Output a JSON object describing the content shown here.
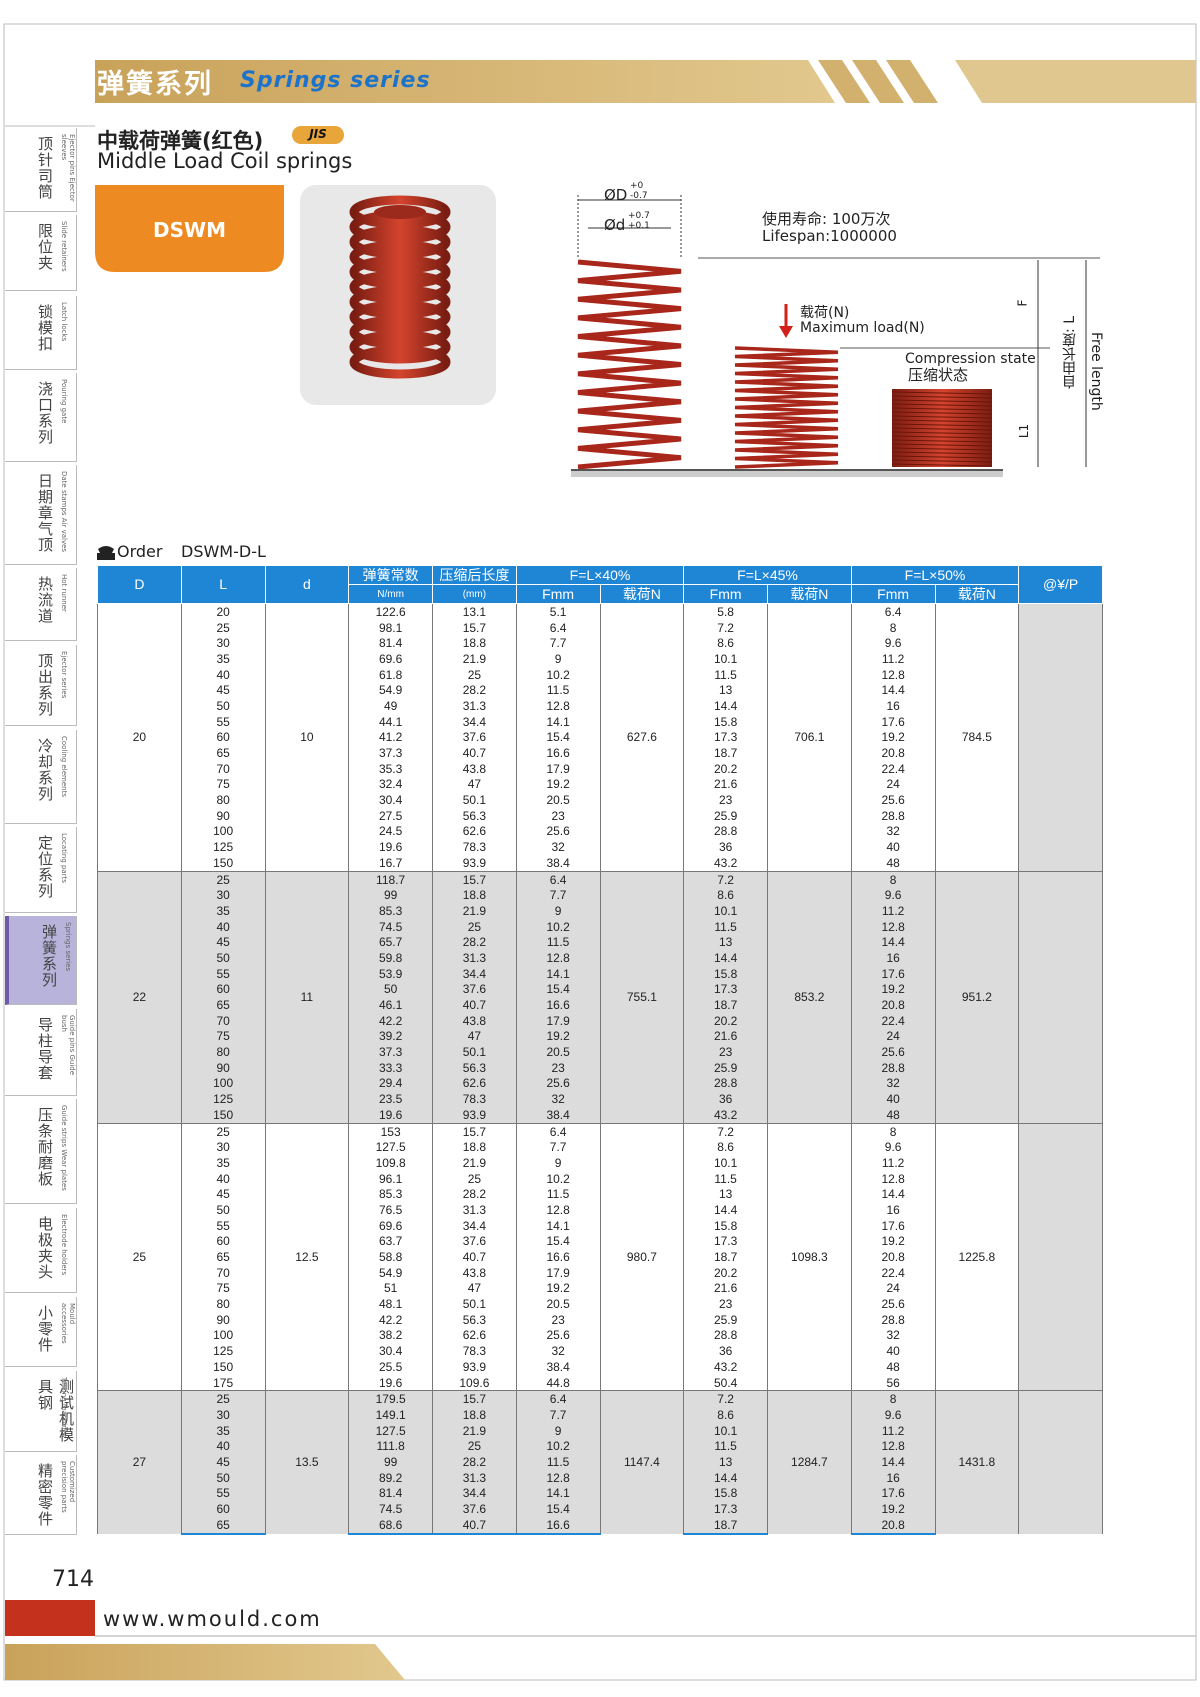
{
  "banner": {
    "cn": "弹簧系列",
    "en": "Springs series"
  },
  "sidebar": [
    {
      "cn": "顶针司筒",
      "en": "Ejector pins Ejector sleeves"
    },
    {
      "cn": "限位夹",
      "en": "Slide retainers"
    },
    {
      "cn": "锁模扣",
      "en": "Latch locks"
    },
    {
      "cn": "浇口系列",
      "en": "Pouring gate"
    },
    {
      "cn": "日期章气顶",
      "en": "Date stamps Air valves"
    },
    {
      "cn": "热流道",
      "en": "Hot runner"
    },
    {
      "cn": "顶出系列",
      "en": "Ejector series"
    },
    {
      "cn": "冷却系列",
      "en": "Cooling elements"
    },
    {
      "cn": "定位系列",
      "en": "Locating parts"
    },
    {
      "cn": "弹簧系列",
      "en": "Springs series"
    },
    {
      "cn": "导柱导套",
      "en": "Guide pins Guide bush"
    },
    {
      "cn": "压条耐磨板",
      "en": "Guide strips Wear plates"
    },
    {
      "cn": "电极夹头",
      "en": "Electrode holders"
    },
    {
      "cn": "小零件",
      "en": "Mould accessories"
    },
    {
      "cn": "测试机模具钢",
      "en": "Testing machines"
    },
    {
      "cn": "精密零件",
      "en": "Customized precision parts"
    }
  ],
  "product": {
    "title_cn": "中载荷弹簧(红色)",
    "badge": "JIS",
    "title_en": "Middle Load Coil springs",
    "code": "DSWM"
  },
  "diagram": {
    "od": "ØD",
    "od_upper": "+0",
    "od_lower": "-0.7",
    "id": "Ød",
    "id_upper": "+0.7",
    "id_lower": "+0.1",
    "life_cn": "使用寿命: 100万次",
    "life_en": "Lifespan:1000000",
    "load_cn": "载荷(N)",
    "load_en": "Maximum load(N)",
    "comp_en": "Compression state",
    "comp_cn": "压缩状态",
    "f": "F",
    "l": "L",
    "l1": "L1",
    "free_cn": "自由长度: L",
    "free_en": "Free length"
  },
  "order": {
    "label": "Order",
    "code": "DSWM-D-L"
  },
  "table": {
    "header": {
      "D": "D",
      "L": "L",
      "d": "d",
      "k": "弹簧常数",
      "k_unit": "N/mm",
      "comp": "压缩后长度",
      "comp_unit": "(mm)",
      "ratios": [
        "F=L×40%",
        "F=L×45%",
        "F=L×50%"
      ],
      "fmm": "Fmm",
      "load": "载荷N",
      "price": "@¥/P"
    },
    "groups": [
      {
        "D": 20,
        "d": 10,
        "loads": [
          627.6,
          706.1,
          784.5
        ],
        "rows": [
          [
            20,
            122.6,
            13.1,
            5.1,
            5.8,
            6.4
          ],
          [
            25,
            98.1,
            15.7,
            6.4,
            7.2,
            8
          ],
          [
            30,
            81.4,
            18.8,
            7.7,
            8.6,
            9.6
          ],
          [
            35,
            69.6,
            21.9,
            9,
            10.1,
            11.2
          ],
          [
            40,
            61.8,
            25,
            10.2,
            11.5,
            12.8
          ],
          [
            45,
            54.9,
            28.2,
            11.5,
            13,
            14.4
          ],
          [
            50,
            49,
            31.3,
            12.8,
            14.4,
            16
          ],
          [
            55,
            44.1,
            34.4,
            14.1,
            15.8,
            17.6
          ],
          [
            60,
            41.2,
            37.6,
            15.4,
            17.3,
            19.2
          ],
          [
            65,
            37.3,
            40.7,
            16.6,
            18.7,
            20.8
          ],
          [
            70,
            35.3,
            43.8,
            17.9,
            20.2,
            22.4
          ],
          [
            75,
            32.4,
            47,
            19.2,
            21.6,
            24
          ],
          [
            80,
            30.4,
            50.1,
            20.5,
            23,
            25.6
          ],
          [
            90,
            27.5,
            56.3,
            23,
            25.9,
            28.8
          ],
          [
            100,
            24.5,
            62.6,
            25.6,
            28.8,
            32
          ],
          [
            125,
            19.6,
            78.3,
            32,
            36,
            40
          ],
          [
            150,
            16.7,
            93.9,
            38.4,
            43.2,
            48
          ]
        ]
      },
      {
        "D": 22,
        "d": 11,
        "loads": [
          755.1,
          853.2,
          951.2
        ],
        "rows": [
          [
            25,
            118.7,
            15.7,
            6.4,
            7.2,
            8
          ],
          [
            30,
            99,
            18.8,
            7.7,
            8.6,
            9.6
          ],
          [
            35,
            85.3,
            21.9,
            9,
            10.1,
            11.2
          ],
          [
            40,
            74.5,
            25,
            10.2,
            11.5,
            12.8
          ],
          [
            45,
            65.7,
            28.2,
            11.5,
            13,
            14.4
          ],
          [
            50,
            59.8,
            31.3,
            12.8,
            14.4,
            16
          ],
          [
            55,
            53.9,
            34.4,
            14.1,
            15.8,
            17.6
          ],
          [
            60,
            50,
            37.6,
            15.4,
            17.3,
            19.2
          ],
          [
            65,
            46.1,
            40.7,
            16.6,
            18.7,
            20.8
          ],
          [
            70,
            42.2,
            43.8,
            17.9,
            20.2,
            22.4
          ],
          [
            75,
            39.2,
            47,
            19.2,
            21.6,
            24
          ],
          [
            80,
            37.3,
            50.1,
            20.5,
            23,
            25.6
          ],
          [
            90,
            33.3,
            56.3,
            23,
            25.9,
            28.8
          ],
          [
            100,
            29.4,
            62.6,
            25.6,
            28.8,
            32
          ],
          [
            125,
            23.5,
            78.3,
            32,
            36,
            40
          ],
          [
            150,
            19.6,
            93.9,
            38.4,
            43.2,
            48
          ]
        ]
      },
      {
        "D": 25,
        "d": 12.5,
        "loads": [
          980.7,
          1098.3,
          1225.8
        ],
        "rows": [
          [
            25,
            153,
            15.7,
            6.4,
            7.2,
            8
          ],
          [
            30,
            127.5,
            18.8,
            7.7,
            8.6,
            9.6
          ],
          [
            35,
            109.8,
            21.9,
            9,
            10.1,
            11.2
          ],
          [
            40,
            96.1,
            25,
            10.2,
            11.5,
            12.8
          ],
          [
            45,
            85.3,
            28.2,
            11.5,
            13,
            14.4
          ],
          [
            50,
            76.5,
            31.3,
            12.8,
            14.4,
            16
          ],
          [
            55,
            69.6,
            34.4,
            14.1,
            15.8,
            17.6
          ],
          [
            60,
            63.7,
            37.6,
            15.4,
            17.3,
            19.2
          ],
          [
            65,
            58.8,
            40.7,
            16.6,
            18.7,
            20.8
          ],
          [
            70,
            54.9,
            43.8,
            17.9,
            20.2,
            22.4
          ],
          [
            75,
            51,
            47,
            19.2,
            21.6,
            24
          ],
          [
            80,
            48.1,
            50.1,
            20.5,
            23,
            25.6
          ],
          [
            90,
            42.2,
            56.3,
            23,
            25.9,
            28.8
          ],
          [
            100,
            38.2,
            62.6,
            25.6,
            28.8,
            32
          ],
          [
            125,
            30.4,
            78.3,
            32,
            36,
            40
          ],
          [
            150,
            25.5,
            93.9,
            38.4,
            43.2,
            48
          ],
          [
            175,
            19.6,
            109.6,
            44.8,
            50.4,
            56
          ]
        ]
      },
      {
        "D": 27,
        "d": 13.5,
        "loads": [
          1147.4,
          1284.7,
          1431.8
        ],
        "rows": [
          [
            25,
            179.5,
            15.7,
            6.4,
            7.2,
            8
          ],
          [
            30,
            149.1,
            18.8,
            7.7,
            8.6,
            9.6
          ],
          [
            35,
            127.5,
            21.9,
            9,
            10.1,
            11.2
          ],
          [
            40,
            111.8,
            25,
            10.2,
            11.5,
            12.8
          ],
          [
            45,
            99,
            28.2,
            11.5,
            13,
            14.4
          ],
          [
            50,
            89.2,
            31.3,
            12.8,
            14.4,
            16
          ],
          [
            55,
            81.4,
            34.4,
            14.1,
            15.8,
            17.6
          ],
          [
            60,
            74.5,
            37.6,
            15.4,
            17.3,
            19.2
          ],
          [
            65,
            68.6,
            40.7,
            16.6,
            18.7,
            20.8
          ]
        ]
      }
    ]
  },
  "footer": {
    "page": "714",
    "url": "www.wmould.com"
  }
}
